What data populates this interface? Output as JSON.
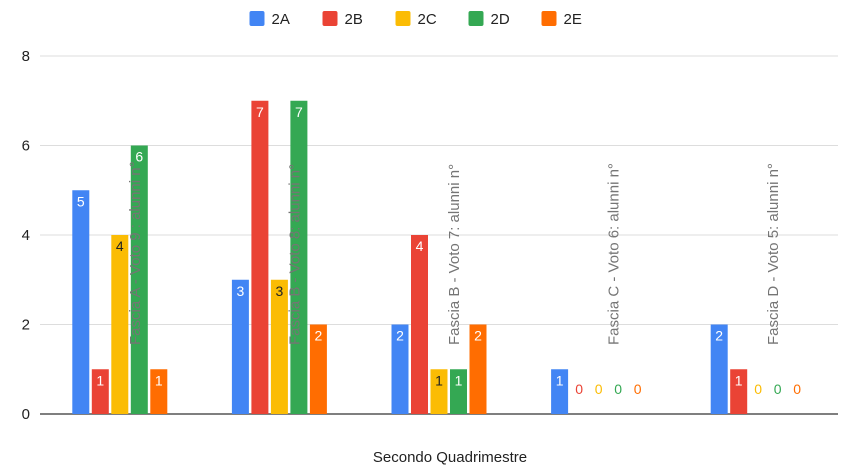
{
  "chart_data": {
    "type": "bar",
    "xlabel": "Secondo Quadrimestre",
    "ylabel": "",
    "ylim": [
      0,
      8
    ],
    "yticks": [
      0,
      2,
      4,
      6,
      8
    ],
    "grid": true,
    "legend_position": "top",
    "categories": [
      "Fascia A - Voto 9 : alunni n°",
      "Fascia B - Voto 8: alunni n°",
      "Fascia B - Voto 7: alunni n°",
      "Fascia C - Voto 6: alunni n°",
      "Fascia D - Voto 5: alunni n°"
    ],
    "series": [
      {
        "name": "2A",
        "color": "#4285F4",
        "values": [
          5,
          3,
          2,
          1,
          2
        ]
      },
      {
        "name": "2B",
        "color": "#EA4335",
        "values": [
          1,
          7,
          4,
          0,
          1
        ]
      },
      {
        "name": "2C",
        "color": "#FBBC04",
        "values": [
          4,
          3,
          1,
          0,
          0
        ]
      },
      {
        "name": "2D",
        "color": "#34A853",
        "values": [
          6,
          7,
          1,
          0,
          0
        ]
      },
      {
        "name": "2E",
        "color": "#FF6D01",
        "values": [
          1,
          2,
          2,
          0,
          0
        ]
      }
    ]
  }
}
